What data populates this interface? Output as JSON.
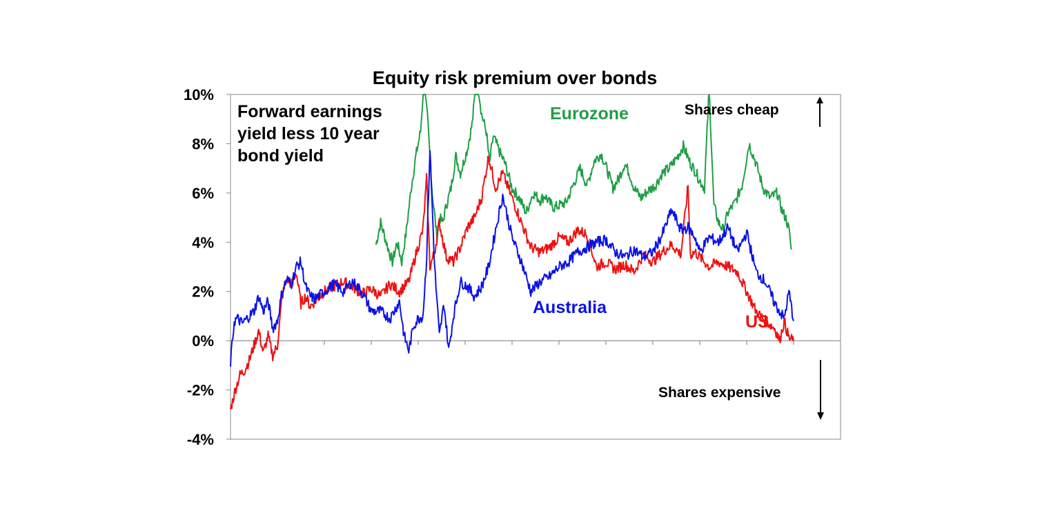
{
  "chart_data": {
    "type": "line",
    "title": "Equity risk premium over bonds",
    "annotation": [
      "Forward earnings",
      "yield less 10 year",
      "bond yield"
    ],
    "upper_note": "Shares cheap",
    "lower_note": "Shares expensive",
    "x_unit": "index (about 45 years of data, 13 year ticks)",
    "ylim": [
      -4,
      10
    ],
    "yticks": [
      -4,
      -2,
      0,
      2,
      4,
      6,
      8,
      10
    ],
    "ytick_labels": [
      "-4%",
      "-2%",
      "0%",
      "2%",
      "4%",
      "6%",
      "8%",
      "10%"
    ],
    "xlim": [
      0,
      1300
    ],
    "xticks": [
      100,
      200,
      300,
      400,
      500,
      600,
      700,
      800,
      900,
      1000,
      1100,
      1200
    ],
    "colors": {
      "australia": "#0a12e6",
      "us": "#ee1111",
      "eurozone": "#1f9e45"
    },
    "series": [
      {
        "name": "Eurozone",
        "label": "Eurozone",
        "x": [
          310,
          320,
          335,
          345,
          355,
          365,
          375,
          385,
          395,
          405,
          412,
          420,
          430,
          440,
          445,
          452,
          460,
          470,
          480,
          490,
          505,
          515,
          525,
          535,
          545,
          552,
          560,
          575,
          585,
          600,
          615,
          630,
          645,
          660,
          670,
          680,
          690,
          700,
          715,
          730,
          745,
          760,
          775,
          790,
          805,
          815,
          828,
          840,
          850,
          860,
          875,
          890,
          905,
          920,
          935,
          950,
          965,
          980,
          990,
          1000,
          1010,
          1020,
          1030,
          1040,
          1050,
          1060,
          1075,
          1090,
          1105,
          1120,
          1135,
          1150,
          1165,
          1175,
          1185,
          1190,
          1195
        ],
        "values": [
          3.9,
          4.8,
          3.8,
          3.2,
          4.0,
          3.2,
          4.5,
          6.2,
          7.5,
          8.5,
          10.5,
          9.0,
          6.0,
          4.2,
          5.0,
          4.8,
          5.5,
          6.2,
          7.5,
          6.8,
          7.8,
          8.8,
          10.8,
          9.2,
          8.5,
          7.2,
          8.3,
          7.6,
          7.2,
          6.2,
          5.8,
          5.2,
          6.0,
          5.7,
          5.9,
          5.6,
          5.4,
          5.5,
          5.6,
          6.3,
          7.0,
          6.3,
          7.3,
          7.6,
          6.8,
          6.2,
          6.6,
          7.2,
          6.8,
          6.2,
          5.8,
          6.1,
          6.3,
          6.8,
          7.0,
          7.4,
          7.9,
          7.2,
          6.9,
          6.5,
          6.2,
          10.3,
          5.5,
          4.8,
          4.5,
          5.2,
          5.6,
          6.3,
          8.0,
          7.2,
          6.2,
          5.8,
          6.0,
          5.3,
          4.9,
          4.5,
          3.7
        ]
      },
      {
        "name": "US",
        "label": "US",
        "x": [
          0,
          10,
          20,
          30,
          40,
          50,
          60,
          70,
          80,
          90,
          100,
          110,
          120,
          130,
          140,
          150,
          160,
          170,
          180,
          200,
          220,
          240,
          260,
          280,
          300,
          320,
          340,
          360,
          380,
          395,
          410,
          418,
          425,
          435,
          445,
          460,
          475,
          490,
          505,
          520,
          535,
          550,
          565,
          580,
          600,
          620,
          640,
          660,
          680,
          700,
          720,
          740,
          760,
          780,
          800,
          820,
          840,
          860,
          880,
          900,
          920,
          940,
          960,
          975,
          980,
          990,
          1000,
          1020,
          1040,
          1060,
          1080,
          1100,
          1120,
          1140,
          1160,
          1170,
          1180,
          1190,
          1200
        ],
        "values": [
          -2.8,
          -2.0,
          -1.4,
          -1.2,
          -0.8,
          -0.2,
          0.4,
          -0.5,
          0.2,
          -0.6,
          -0.2,
          1.8,
          2.5,
          2.3,
          2.8,
          1.5,
          1.8,
          1.4,
          1.6,
          2.0,
          2.2,
          2.4,
          2.2,
          1.9,
          2.1,
          1.8,
          2.3,
          2.0,
          2.4,
          3.5,
          4.5,
          6.6,
          3.0,
          3.6,
          4.8,
          3.4,
          3.2,
          3.8,
          4.6,
          5.0,
          5.8,
          7.5,
          6.2,
          6.8,
          5.8,
          4.8,
          3.8,
          3.6,
          3.8,
          4.2,
          4.0,
          4.5,
          4.3,
          3.0,
          3.2,
          2.9,
          3.1,
          2.8,
          3.5,
          3.2,
          3.6,
          3.9,
          3.5,
          6.3,
          3.5,
          3.6,
          3.4,
          3.0,
          3.2,
          3.0,
          2.8,
          2.0,
          1.2,
          0.8,
          0.5,
          0.0,
          0.8,
          0.1,
          0.0
        ]
      },
      {
        "name": "Australia",
        "label": "Australia",
        "x": [
          0,
          8,
          15,
          25,
          40,
          50,
          60,
          70,
          80,
          90,
          100,
          110,
          120,
          130,
          140,
          150,
          160,
          170,
          180,
          200,
          220,
          240,
          260,
          280,
          300,
          320,
          340,
          360,
          370,
          380,
          390,
          400,
          410,
          418,
          425,
          435,
          445,
          455,
          465,
          475,
          490,
          505,
          520,
          535,
          550,
          565,
          580,
          600,
          620,
          640,
          660,
          680,
          700,
          720,
          740,
          760,
          780,
          800,
          820,
          840,
          860,
          880,
          900,
          920,
          940,
          960,
          975,
          990,
          1000,
          1020,
          1040,
          1060,
          1080,
          1100,
          1120,
          1140,
          1160,
          1170,
          1180,
          1190,
          1200
        ],
        "values": [
          -0.9,
          0.8,
          0.9,
          0.7,
          1.0,
          1.2,
          1.8,
          1.2,
          1.6,
          0.5,
          0.8,
          2.0,
          2.5,
          2.3,
          3.0,
          3.2,
          2.2,
          1.8,
          1.7,
          2.0,
          2.3,
          2.0,
          2.4,
          2.0,
          1.2,
          1.2,
          0.9,
          1.6,
          0.2,
          -0.4,
          0.6,
          0.9,
          1.0,
          3.4,
          7.8,
          3.0,
          0.2,
          1.5,
          -0.4,
          1.0,
          2.4,
          2.2,
          1.8,
          2.2,
          3.0,
          4.5,
          5.9,
          4.2,
          3.2,
          2.0,
          2.4,
          2.6,
          3.0,
          3.2,
          3.6,
          3.8,
          4.0,
          4.1,
          3.6,
          3.4,
          3.7,
          3.4,
          3.6,
          4.3,
          5.3,
          4.5,
          4.6,
          4.2,
          3.6,
          4.2,
          4.0,
          4.6,
          3.6,
          4.4,
          2.8,
          2.4,
          1.5,
          1.2,
          0.9,
          2.0,
          0.8
        ]
      }
    ],
    "series_label_positions": [
      "upper-middle-right",
      "lower-right",
      "middle"
    ]
  }
}
